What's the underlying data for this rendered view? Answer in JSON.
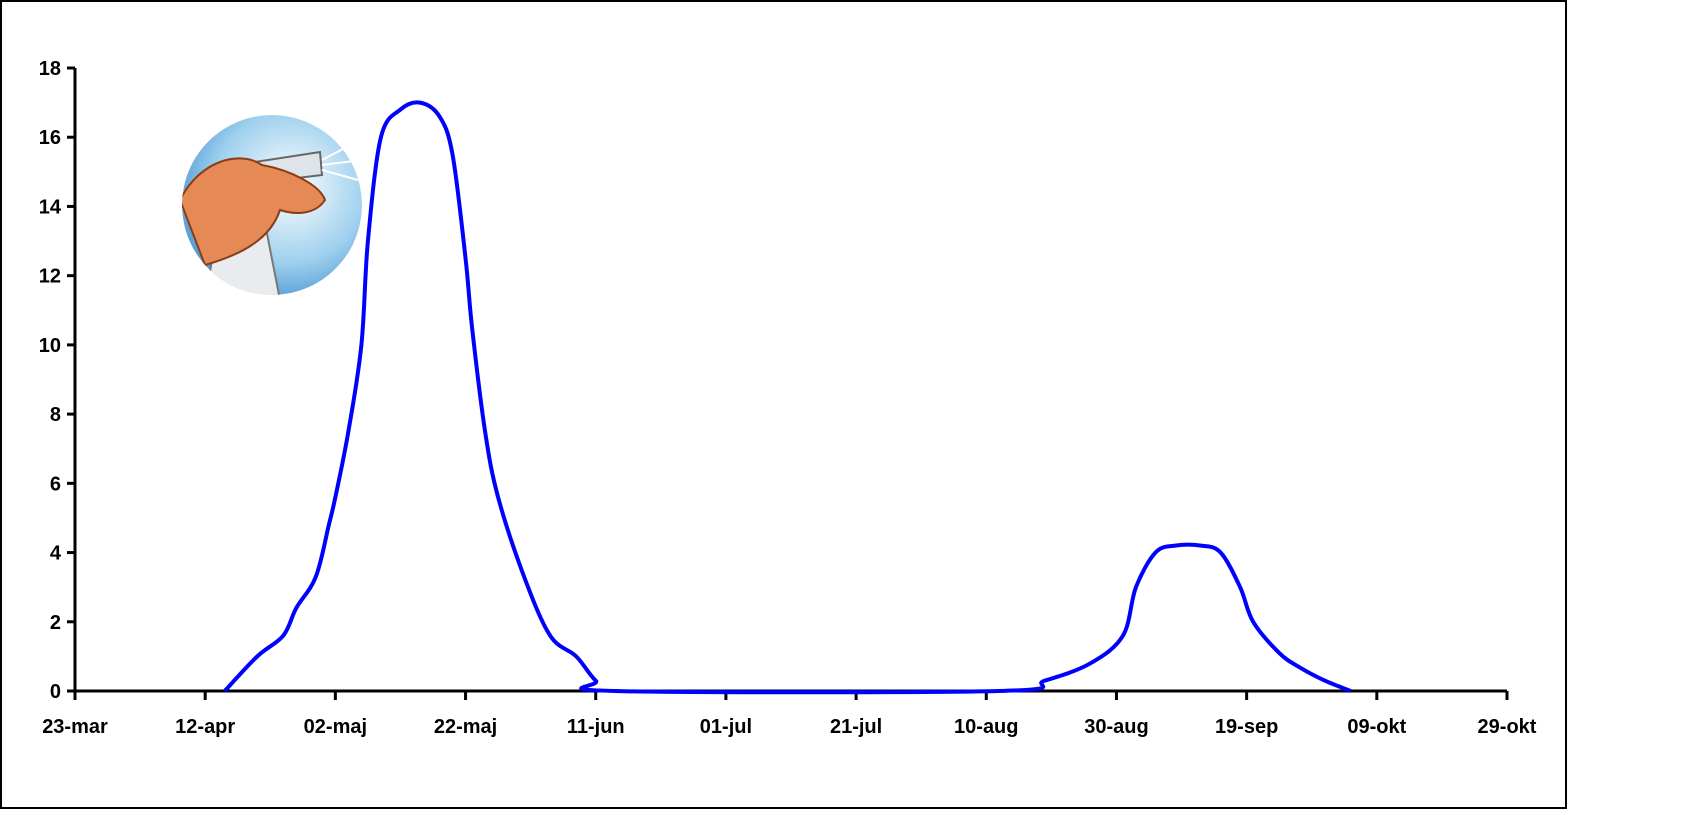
{
  "chart_data": {
    "type": "line",
    "x": [
      "04-15",
      "04-20",
      "04-24",
      "04-26",
      "04-29",
      "05-01",
      "05-02",
      "05-04",
      "05-06",
      "05-07",
      "05-09",
      "05-12",
      "05-15",
      "05-18",
      "05-20",
      "05-22",
      "05-23",
      "05-25",
      "05-27",
      "05-31",
      "06-04",
      "06-08",
      "06-11",
      "06-14",
      "08-12",
      "08-19",
      "08-26",
      "08-31",
      "09-02",
      "09-05",
      "09-08",
      "09-12",
      "09-15",
      "09-18",
      "09-20",
      "09-24",
      "09-27",
      "10-01",
      "10-05"
    ],
    "series": [
      {
        "name": "",
        "color": "#0000ff",
        "values": [
          0,
          1.0,
          1.6,
          2.4,
          3.3,
          4.8,
          5.6,
          7.5,
          10,
          13,
          16,
          16.8,
          17,
          16.6,
          15.5,
          12.5,
          10.5,
          7.5,
          5.6,
          3.3,
          1.6,
          1.0,
          0.3,
          0,
          0,
          0.3,
          0.8,
          1.6,
          3.0,
          4.0,
          4.2,
          4.2,
          4.0,
          3.0,
          2.0,
          1.1,
          0.7,
          0.3,
          0
        ]
      }
    ],
    "xlim": [
      "03-23",
      "10-29"
    ],
    "xticks": [
      {
        "value": "03-23",
        "label": "23-mar"
      },
      {
        "value": "04-12",
        "label": "12-apr"
      },
      {
        "value": "05-02",
        "label": "02-maj"
      },
      {
        "value": "05-22",
        "label": "22-maj"
      },
      {
        "value": "06-11",
        "label": "11-jun"
      },
      {
        "value": "07-01",
        "label": "01-jul"
      },
      {
        "value": "07-21",
        "label": "21-jul"
      },
      {
        "value": "08-10",
        "label": "10-aug"
      },
      {
        "value": "08-30",
        "label": "30-aug"
      },
      {
        "value": "09-19",
        "label": "19-sep"
      },
      {
        "value": "10-09",
        "label": "09-okt"
      },
      {
        "value": "10-29",
        "label": "29-okt"
      }
    ],
    "ylim": [
      0,
      18
    ],
    "yticks": [
      0,
      2,
      4,
      6,
      8,
      10,
      12,
      14,
      16,
      18
    ],
    "grid": false
  }
}
